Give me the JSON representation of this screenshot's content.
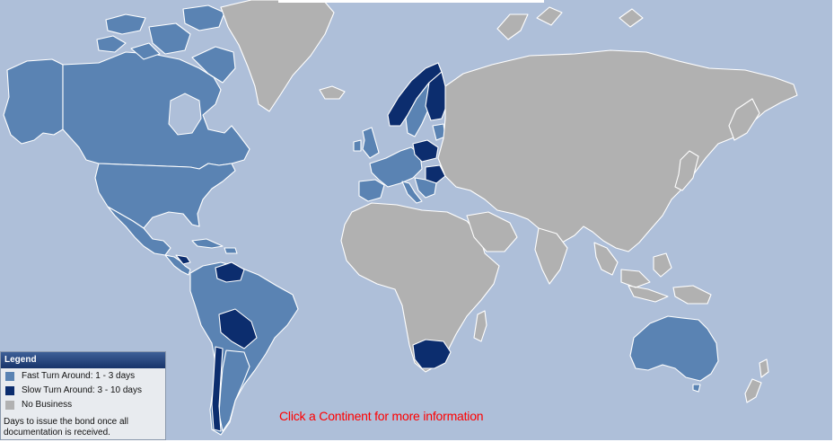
{
  "legend": {
    "title": "Legend",
    "items": [
      {
        "label": "Fast Turn Around: 1 - 3 days",
        "color": "#5a83b3"
      },
      {
        "label": "Slow Turn Around: 3 - 10 days",
        "color": "#0c2d6e"
      },
      {
        "label": "No Business",
        "color": "#b1b1b1"
      }
    ],
    "note": "Days to issue the bond once all documentation is received."
  },
  "call_to_action": "Click a Continent for more information",
  "colors": {
    "ocean": "#aebfd9",
    "fast_turnaround": "#5a83b3",
    "slow_turnaround": "#0c2d6e",
    "no_business": "#b1b1b1",
    "call_to_action": "#ff0000"
  },
  "regions": {
    "north_america": "fast_turnaround",
    "greenland": "no_business",
    "central_america": "fast_turnaround",
    "south_america": "fast_turnaround",
    "venezuela": "slow_turnaround",
    "bolivia": "slow_turnaround",
    "norway": "slow_turnaround",
    "finland": "slow_turnaround",
    "sweden": "fast_turnaround",
    "poland": "slow_turnaround",
    "romania": "slow_turnaround",
    "western_europe": "fast_turnaround",
    "africa": "no_business",
    "south_africa": "slow_turnaround",
    "asia": "no_business",
    "australia": "fast_turnaround",
    "new_zealand": "no_business"
  }
}
